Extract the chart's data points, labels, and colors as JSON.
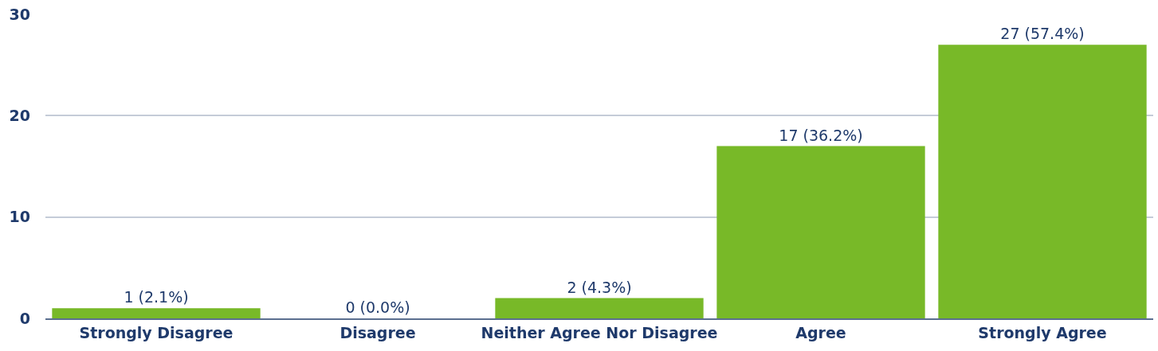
{
  "chart_data": {
    "type": "bar",
    "categories": [
      "Strongly Disagree",
      "Disagree",
      "Neither Agree Nor Disagree",
      "Agree",
      "Strongly Agree"
    ],
    "values": [
      1,
      0,
      2,
      17,
      27
    ],
    "color": "#78b928",
    "value_labels": [
      "1 (2.1%)",
      "0 (0.0%)",
      "2 (4.3%)",
      "17 (36.2%)",
      "27 (57.4%)"
    ],
    "ylim": [
      0,
      30
    ],
    "yticks": [
      0,
      10,
      20,
      30
    ],
    "grid": "y",
    "legend": false
  }
}
